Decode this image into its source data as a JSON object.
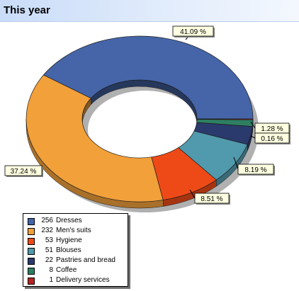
{
  "header": {
    "title": "This year"
  },
  "chart_data": {
    "type": "pie",
    "style": "donut-3d",
    "title": "This year",
    "legend_placement": "bottom-left",
    "slices": [
      {
        "label": "Dresses",
        "value": 256,
        "percent_label": "41.09 %",
        "color": "#4565a8"
      },
      {
        "label": "Men's suits",
        "value": 232,
        "percent_label": "37.24 %",
        "color": "#f2a03a"
      },
      {
        "label": "Hygiene",
        "value": 53,
        "percent_label": "8.51 %",
        "color": "#ee4a18"
      },
      {
        "label": "Blouses",
        "value": 51,
        "percent_label": "8.19 %",
        "color": "#5199ac"
      },
      {
        "label": "Pastries and bread",
        "value": 22,
        "percent_label": "",
        "color": "#2b3a6c"
      },
      {
        "label": "Coffee",
        "value": 8,
        "percent_label": "1.28 %",
        "color": "#2e7f62"
      },
      {
        "label": "Delivery services",
        "value": 1,
        "percent_label": "0.16 %",
        "color": "#b82323"
      }
    ]
  }
}
